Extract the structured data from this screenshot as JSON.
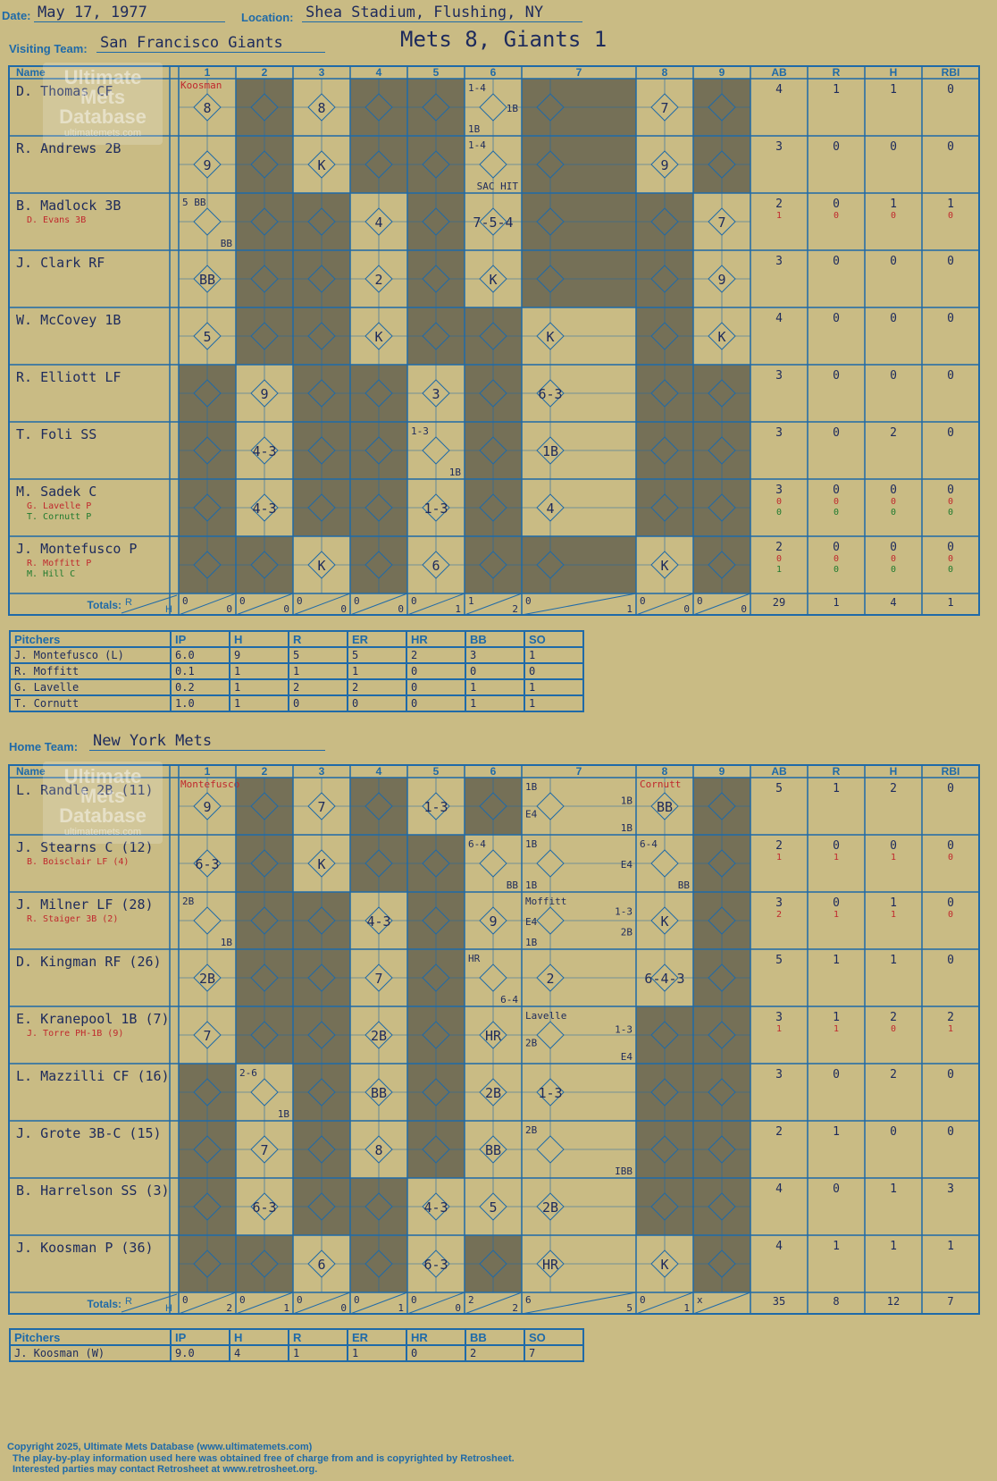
{
  "header": {
    "date_label": "Date:",
    "date": "May 17, 1977",
    "location_label": "Location:",
    "location": "Shea Stadium, Flushing, NY",
    "game_title": "Mets 8, Giants 1"
  },
  "visitors": {
    "team_label": "Visiting Team:",
    "team": "San Francisco Giants",
    "col_name": "Name",
    "innings": [
      "1",
      "2",
      "3",
      "4",
      "5",
      "6",
      "7",
      "8",
      "9"
    ],
    "stat_cols": [
      "AB",
      "R",
      "H",
      "RBI"
    ],
    "starting_pitcher_note": "Koosman",
    "players": [
      {
        "name": "D. Thomas CF",
        "subs": [],
        "ab": [
          "4"
        ],
        "r": [
          "1"
        ],
        "h": [
          "1"
        ],
        "rbi": [
          "0"
        ]
      },
      {
        "name": "R. Andrews 2B",
        "subs": [],
        "ab": [
          "3"
        ],
        "r": [
          "0"
        ],
        "h": [
          "0"
        ],
        "rbi": [
          "0"
        ]
      },
      {
        "name": "B. Madlock 3B",
        "subs": [
          "D. Evans 3B"
        ],
        "ab": [
          "2",
          "1"
        ],
        "r": [
          "0",
          "0"
        ],
        "h": [
          "1",
          "0"
        ],
        "rbi": [
          "1",
          "0"
        ]
      },
      {
        "name": "J. Clark RF",
        "subs": [],
        "ab": [
          "3"
        ],
        "r": [
          "0"
        ],
        "h": [
          "0"
        ],
        "rbi": [
          "0"
        ]
      },
      {
        "name": "W. McCovey 1B",
        "subs": [],
        "ab": [
          "4"
        ],
        "r": [
          "0"
        ],
        "h": [
          "0"
        ],
        "rbi": [
          "0"
        ]
      },
      {
        "name": "R. Elliott LF",
        "subs": [],
        "ab": [
          "3"
        ],
        "r": [
          "0"
        ],
        "h": [
          "0"
        ],
        "rbi": [
          "0"
        ]
      },
      {
        "name": "T. Foli SS",
        "subs": [],
        "ab": [
          "3"
        ],
        "r": [
          "0"
        ],
        "h": [
          "2"
        ],
        "rbi": [
          "0"
        ]
      },
      {
        "name": "M. Sadek C",
        "subs": [
          "G. Lavelle P",
          "T. Cornutt P"
        ],
        "ab": [
          "3",
          "0",
          "0"
        ],
        "r": [
          "0",
          "0",
          "0"
        ],
        "h": [
          "0",
          "0",
          "0"
        ],
        "rbi": [
          "0",
          "0",
          "0"
        ]
      },
      {
        "name": "J. Montefusco P",
        "subs": [
          "R. Moffitt P",
          "M. Hill C"
        ],
        "ab": [
          "2",
          "0",
          "1"
        ],
        "r": [
          "0",
          "0",
          "0"
        ],
        "h": [
          "0",
          "0",
          "0"
        ],
        "rbi": [
          "0",
          "0",
          "0"
        ]
      }
    ],
    "cells": [
      [
        "8",
        "",
        "8",
        "",
        "",
        "1-4|1B|1B",
        "",
        "7",
        ""
      ],
      [
        "9",
        "",
        "K",
        "",
        "",
        "1-4|SAC HIT",
        "",
        "9",
        ""
      ],
      [
        "5 BB|BB",
        "",
        "",
        "4",
        "",
        "7-5-4",
        "",
        "",
        "7"
      ],
      [
        "BB",
        "",
        "",
        "2",
        "",
        "K",
        "",
        "",
        "9"
      ],
      [
        "5",
        "",
        "",
        "K",
        "",
        "",
        "K",
        "",
        "K"
      ],
      [
        "",
        "9",
        "",
        "",
        "3",
        "",
        "6-3",
        "",
        ""
      ],
      [
        "",
        "4-3",
        "",
        "",
        "1-3|1B",
        "",
        "1B",
        "",
        ""
      ],
      [
        "",
        "4-3",
        "",
        "",
        "1-3",
        "",
        "4",
        "",
        ""
      ],
      [
        "",
        "",
        "K",
        "",
        "6",
        "",
        "",
        "K",
        ""
      ]
    ],
    "totals_label": "Totals:",
    "rh_r": "R",
    "rh_h": "H",
    "inning_totals": [
      [
        "0",
        "0"
      ],
      [
        "0",
        "0"
      ],
      [
        "0",
        "0"
      ],
      [
        "0",
        "0"
      ],
      [
        "0",
        "1"
      ],
      [
        "1",
        "2"
      ],
      [
        "0",
        "1"
      ],
      [
        "0",
        "0"
      ],
      [
        "0",
        "0"
      ]
    ],
    "game_totals": [
      "29",
      "1",
      "4",
      "1"
    ],
    "pitchers_label": "Pitchers",
    "pitch_cols": [
      "IP",
      "H",
      "R",
      "ER",
      "HR",
      "BB",
      "SO"
    ],
    "pitchers": [
      {
        "name": "J. Montefusco (L)",
        "stats": [
          "6.0",
          "9",
          "5",
          "5",
          "2",
          "3",
          "1"
        ]
      },
      {
        "name": "R. Moffitt",
        "stats": [
          "0.1",
          "1",
          "1",
          "1",
          "0",
          "0",
          "0"
        ]
      },
      {
        "name": "G. Lavelle",
        "stats": [
          "0.2",
          "1",
          "2",
          "2",
          "0",
          "1",
          "1"
        ]
      },
      {
        "name": "T. Cornutt",
        "stats": [
          "1.0",
          "1",
          "0",
          "0",
          "0",
          "1",
          "1"
        ]
      }
    ]
  },
  "home": {
    "team_label": "Home Team:",
    "team": "New York Mets",
    "col_name": "Name",
    "innings": [
      "1",
      "2",
      "3",
      "4",
      "5",
      "6",
      "7",
      "8",
      "9"
    ],
    "stat_cols": [
      "AB",
      "R",
      "H",
      "RBI"
    ],
    "starting_pitcher_note": "Montefusco",
    "relief_note": "Cornutt",
    "players": [
      {
        "name": "L. Randle 2B (11)",
        "subs": [],
        "ab": [
          "5"
        ],
        "r": [
          "1"
        ],
        "h": [
          "2"
        ],
        "rbi": [
          "0"
        ]
      },
      {
        "name": "J. Stearns C (12)",
        "subs": [
          "B. Boisclair LF (4)"
        ],
        "ab": [
          "2",
          "1"
        ],
        "r": [
          "0",
          "1"
        ],
        "h": [
          "0",
          "1"
        ],
        "rbi": [
          "0",
          "0"
        ]
      },
      {
        "name": "J. Milner LF (28)",
        "subs": [
          "R. Staiger 3B (2)"
        ],
        "ab": [
          "3",
          "2"
        ],
        "r": [
          "0",
          "1"
        ],
        "h": [
          "1",
          "1"
        ],
        "rbi": [
          "0",
          "0"
        ]
      },
      {
        "name": "D. Kingman RF (26)",
        "subs": [],
        "ab": [
          "5"
        ],
        "r": [
          "1"
        ],
        "h": [
          "1"
        ],
        "rbi": [
          "0"
        ]
      },
      {
        "name": "E. Kranepool 1B (7)",
        "subs": [
          "J. Torre PH-1B (9)"
        ],
        "ab": [
          "3",
          "1"
        ],
        "r": [
          "1",
          "1"
        ],
        "h": [
          "2",
          "0"
        ],
        "rbi": [
          "2",
          "1"
        ]
      },
      {
        "name": "L. Mazzilli CF (16)",
        "subs": [],
        "ab": [
          "3"
        ],
        "r": [
          "0"
        ],
        "h": [
          "2"
        ],
        "rbi": [
          "0"
        ]
      },
      {
        "name": "J. Grote 3B-C (15)",
        "subs": [],
        "ab": [
          "2"
        ],
        "r": [
          "1"
        ],
        "h": [
          "0"
        ],
        "rbi": [
          "0"
        ]
      },
      {
        "name": "B. Harrelson SS (3)",
        "subs": [],
        "ab": [
          "4"
        ],
        "r": [
          "0"
        ],
        "h": [
          "1"
        ],
        "rbi": [
          "3"
        ]
      },
      {
        "name": "J. Koosman P (36)",
        "subs": [],
        "ab": [
          "4"
        ],
        "r": [
          "1"
        ],
        "h": [
          "1"
        ],
        "rbi": [
          "1"
        ]
      }
    ],
    "cells": [
      [
        "9",
        "",
        "7",
        "",
        "1-3",
        "",
        "1B|1B|E4|1B",
        "BB",
        ""
      ],
      [
        "6-3",
        "",
        "K",
        "",
        "",
        "6-4|BB",
        "1B|E4|1B",
        "6-4|BB",
        ""
      ],
      [
        "2B|1B",
        "",
        "",
        "4-3",
        "",
        "9",
        "Moffitt|1-3|E4|2B|1B",
        "K",
        ""
      ],
      [
        "2B",
        "",
        "",
        "7",
        "",
        "HR|6-4",
        "2",
        "6-4-3",
        ""
      ],
      [
        "7",
        "",
        "",
        "2B",
        "",
        "HR",
        "Lavelle|1-3|2B|E4",
        "",
        ""
      ],
      [
        "",
        "2-6|1B",
        "",
        "BB",
        "",
        "2B",
        "1-3",
        "",
        ""
      ],
      [
        "",
        "7",
        "",
        "8",
        "",
        "BB",
        "2B|IBB",
        "",
        ""
      ],
      [
        "",
        "6-3",
        "",
        "",
        "4-3",
        "5",
        "2B",
        "",
        ""
      ],
      [
        "",
        "",
        "6",
        "",
        "6-3",
        "",
        "HR",
        "K",
        ""
      ]
    ],
    "totals_label": "Totals:",
    "rh_r": "R",
    "rh_h": "H",
    "inning_totals": [
      [
        "0",
        "2"
      ],
      [
        "0",
        "1"
      ],
      [
        "0",
        "0"
      ],
      [
        "0",
        "1"
      ],
      [
        "0",
        "0"
      ],
      [
        "2",
        "2"
      ],
      [
        "6",
        "5"
      ],
      [
        "0",
        "1"
      ],
      [
        "x",
        ""
      ]
    ],
    "game_totals": [
      "35",
      "8",
      "12",
      "7"
    ],
    "pitchers_label": "Pitchers",
    "pitch_cols": [
      "IP",
      "H",
      "R",
      "ER",
      "HR",
      "BB",
      "SO"
    ],
    "pitchers": [
      {
        "name": "J. Koosman (W)",
        "stats": [
          "9.0",
          "4",
          "1",
          "1",
          "0",
          "2",
          "7"
        ]
      }
    ]
  },
  "watermark": {
    "line1": "Ultimate",
    "line2": "Mets",
    "line3": "Database",
    "line4": "ultimatemets.com"
  },
  "footer": {
    "copyright": "Copyright 2025, Ultimate Mets Database (www.ultimatemets.com)",
    "line2": "The play-by-play information used here was obtained free of charge from and is copyrighted by Retrosheet.",
    "line3": "Interested parties may contact Retrosheet at www.retrosheet.org."
  },
  "colors": {
    "background": "#c9bb84",
    "grid": "#1f6aa8",
    "dark_cell": "#757057",
    "ink": "#1d2a5c",
    "red_ink": "#c0282d",
    "green_ink": "#1f7a2e"
  }
}
